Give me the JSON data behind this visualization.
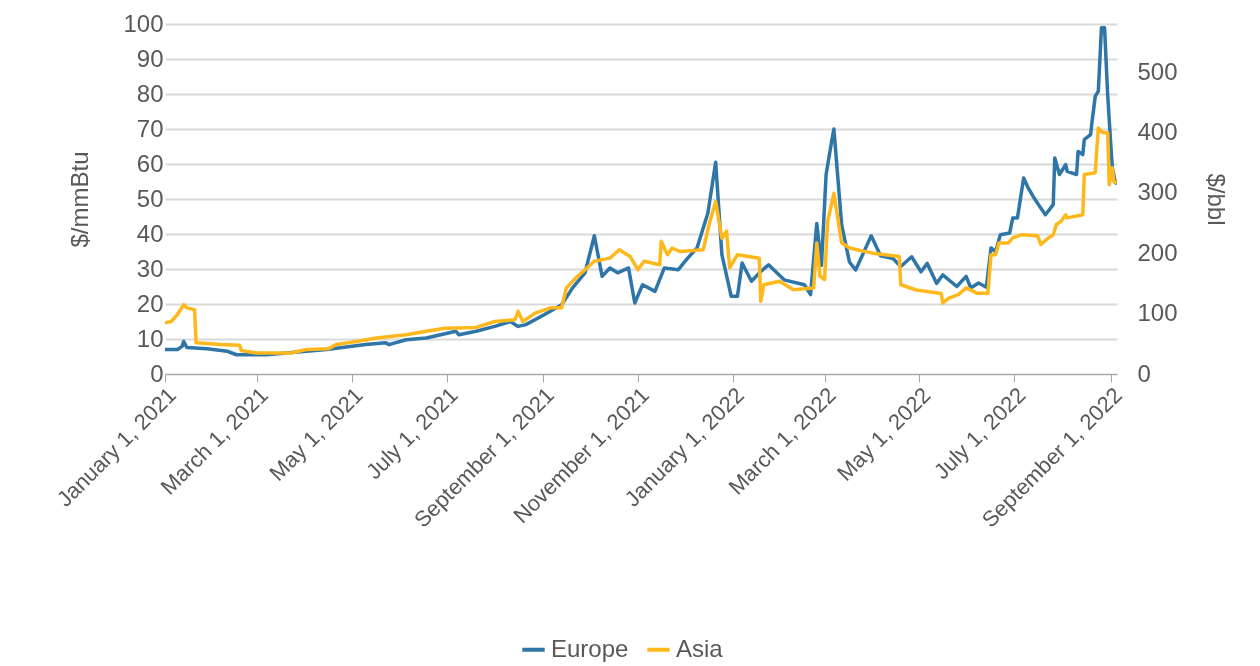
{
  "chart_data": {
    "type": "line",
    "ylabel": "$/mmBtu",
    "y2label": "$/bbl",
    "xlim": [
      "2021-01-01",
      "2022-09-05"
    ],
    "xticks": [
      {
        "value": "2021-01-01",
        "label": "January 1, 2021"
      },
      {
        "value": "2021-03-01",
        "label": "March 1, 2021"
      },
      {
        "value": "2021-05-01",
        "label": "May 1, 2021"
      },
      {
        "value": "2021-07-01",
        "label": "July 1, 2021"
      },
      {
        "value": "2021-09-01",
        "label": "September 1, 2021"
      },
      {
        "value": "2021-11-01",
        "label": "November 1, 2021"
      },
      {
        "value": "2022-01-01",
        "label": "January 1, 2022"
      },
      {
        "value": "2022-03-01",
        "label": "March 1, 2022"
      },
      {
        "value": "2022-05-01",
        "label": "May 1, 2022"
      },
      {
        "value": "2022-07-01",
        "label": "July 1, 2022"
      },
      {
        "value": "2022-09-01",
        "label": "September 1, 2022"
      }
    ],
    "ylim": [
      0,
      100
    ],
    "yticks": [
      0,
      10,
      20,
      30,
      40,
      50,
      60,
      70,
      80,
      90,
      100
    ],
    "y2lim": [
      0,
      580
    ],
    "y2ticks": [
      0,
      100,
      200,
      300,
      400,
      500
    ],
    "grid": "y",
    "legend": "bottom",
    "line_style": "solid",
    "marker": "none",
    "series": [
      {
        "name": "Europe",
        "color": "#2e75a8",
        "x": [
          "2021-01-01",
          "2021-01-09",
          "2021-01-12",
          "2021-01-13",
          "2021-01-15",
          "2021-01-28",
          "2021-02-10",
          "2021-02-16",
          "2021-03-07",
          "2021-03-20",
          "2021-04-15",
          "2021-05-10",
          "2021-05-23",
          "2021-05-25",
          "2021-06-05",
          "2021-06-18",
          "2021-07-07",
          "2021-07-09",
          "2021-07-20",
          "2021-08-01",
          "2021-08-11",
          "2021-08-16",
          "2021-08-21",
          "2021-09-02",
          "2021-09-13",
          "2021-09-20",
          "2021-09-28",
          "2021-10-04",
          "2021-10-09",
          "2021-10-14",
          "2021-10-19",
          "2021-10-26",
          "2021-10-30",
          "2021-11-04",
          "2021-11-12",
          "2021-11-18",
          "2021-11-27",
          "2021-12-03",
          "2021-12-09",
          "2021-12-16",
          "2021-12-21",
          "2021-12-25",
          "2021-12-31",
          "2022-01-04",
          "2022-01-07",
          "2022-01-13",
          "2022-01-19",
          "2022-01-24",
          "2022-02-03",
          "2022-02-16",
          "2022-02-20",
          "2022-02-24",
          "2022-02-27",
          "2022-03-02",
          "2022-03-05",
          "2022-03-07",
          "2022-03-12",
          "2022-03-17",
          "2022-03-21",
          "2022-03-31",
          "2022-04-06",
          "2022-04-14",
          "2022-04-19",
          "2022-04-26",
          "2022-05-02",
          "2022-05-06",
          "2022-05-12",
          "2022-05-16",
          "2022-05-25",
          "2022-05-31",
          "2022-06-03",
          "2022-06-08",
          "2022-06-13",
          "2022-06-16",
          "2022-06-19",
          "2022-06-22",
          "2022-06-28",
          "2022-06-30",
          "2022-07-03",
          "2022-07-05",
          "2022-07-07",
          "2022-07-10",
          "2022-07-13",
          "2022-07-18",
          "2022-07-21",
          "2022-07-26",
          "2022-07-27",
          "2022-07-30",
          "2022-08-03",
          "2022-08-04",
          "2022-08-10",
          "2022-08-11",
          "2022-08-14",
          "2022-08-15",
          "2022-08-19",
          "2022-08-20",
          "2022-08-22",
          "2022-08-24",
          "2022-08-26",
          "2022-08-28",
          "2022-08-30",
          "2022-09-01",
          "2022-09-02",
          "2022-09-04",
          "2022-09-05"
        ],
        "values": [
          7,
          7,
          7.9,
          9.3,
          7.6,
          7.2,
          6.5,
          5.5,
          5.5,
          6,
          7,
          8.4,
          8.9,
          8.4,
          9.8,
          10.3,
          12.2,
          11.2,
          12.2,
          13.6,
          15,
          13.6,
          14.1,
          17,
          19.8,
          24.6,
          28.9,
          39.5,
          27.9,
          30.3,
          28.9,
          30.3,
          20.3,
          25.5,
          23.6,
          30.3,
          29.8,
          33.1,
          36,
          46,
          60.5,
          34.1,
          22.2,
          22.2,
          31.7,
          26.5,
          29.3,
          31.2,
          26.9,
          25.5,
          22.7,
          43,
          31,
          57,
          65,
          70,
          42.6,
          32,
          29.7,
          39.5,
          33.8,
          33,
          30.7,
          33.5,
          29.2,
          31.6,
          25.9,
          28.3,
          25,
          27.9,
          24.6,
          26,
          24.8,
          36,
          35,
          39.8,
          40.3,
          44.6,
          44.6,
          50.3,
          56,
          53.1,
          50.8,
          47.4,
          45.5,
          48.4,
          61.7,
          57,
          59.8,
          57.9,
          57,
          63.6,
          62.7,
          67,
          68.4,
          72.2,
          79.3,
          80.8,
          98.9,
          98.9,
          79.8,
          65.5,
          58.9,
          54.6,
          54.6
        ]
      },
      {
        "name": "Asia",
        "color": "#ffb81c",
        "x": [
          "2021-01-01",
          "2021-01-05",
          "2021-01-09",
          "2021-01-13",
          "2021-01-15",
          "2021-01-20",
          "2021-01-21",
          "2021-02-06",
          "2021-02-18",
          "2021-02-19",
          "2021-03-01",
          "2021-03-23",
          "2021-04-02",
          "2021-04-16",
          "2021-04-21",
          "2021-05-04",
          "2021-05-17",
          "2021-06-05",
          "2021-06-18",
          "2021-06-30",
          "2021-07-20",
          "2021-08-01",
          "2021-08-14",
          "2021-08-16",
          "2021-08-19",
          "2021-08-27",
          "2021-09-06",
          "2021-09-13",
          "2021-09-16",
          "2021-09-22",
          "2021-09-28",
          "2021-10-04",
          "2021-10-14",
          "2021-10-20",
          "2021-10-27",
          "2021-11-01",
          "2021-11-05",
          "2021-11-15",
          "2021-11-16",
          "2021-11-20",
          "2021-11-23",
          "2021-11-28",
          "2021-12-13",
          "2021-12-17",
          "2021-12-21",
          "2021-12-25",
          "2021-12-28",
          "2021-12-30",
          "2022-01-04",
          "2022-01-18",
          "2022-01-19",
          "2022-01-21",
          "2022-01-31",
          "2022-02-09",
          "2022-02-22",
          "2022-02-24",
          "2022-02-26",
          "2022-03-01",
          "2022-03-03",
          "2022-03-07",
          "2022-03-12",
          "2022-03-17",
          "2022-03-31",
          "2022-04-18",
          "2022-04-19",
          "2022-04-29",
          "2022-05-15",
          "2022-05-16",
          "2022-05-20",
          "2022-05-26",
          "2022-05-31",
          "2022-06-07",
          "2022-06-14",
          "2022-06-16",
          "2022-06-19",
          "2022-06-21",
          "2022-06-27",
          "2022-06-30",
          "2022-07-06",
          "2022-07-16",
          "2022-07-18",
          "2022-07-23",
          "2022-07-26",
          "2022-07-28",
          "2022-07-31",
          "2022-08-03",
          "2022-08-04",
          "2022-08-14",
          "2022-08-15",
          "2022-08-22",
          "2022-08-24",
          "2022-08-27",
          "2022-08-30",
          "2022-08-31",
          "2022-09-02",
          "2022-09-03",
          "2022-09-05"
        ],
        "values": [
          14.6,
          15,
          17,
          19.8,
          18.9,
          18.4,
          8.9,
          8.4,
          8.2,
          6.7,
          6,
          6,
          7,
          7.2,
          8.4,
          9.3,
          10.3,
          11.2,
          12.2,
          13.1,
          13.3,
          15,
          15.5,
          17.9,
          15,
          17.4,
          18.9,
          18.9,
          24.6,
          27.4,
          29.8,
          32.2,
          33.1,
          35.5,
          33.6,
          29.8,
          32.2,
          31.2,
          37.9,
          34.1,
          36,
          35,
          35.5,
          43.1,
          49.3,
          38.8,
          40.8,
          30.3,
          34.1,
          33.1,
          20.8,
          25.5,
          26.5,
          24.1,
          24.6,
          37.4,
          28,
          27,
          43.6,
          51.6,
          37.5,
          36,
          34.6,
          33.6,
          25.5,
          24,
          23,
          20.3,
          21.7,
          22.7,
          24.6,
          23.1,
          23.1,
          34.1,
          34.1,
          37.4,
          37.4,
          38.9,
          39.8,
          39.5,
          37,
          38.9,
          39.8,
          42.7,
          43.6,
          45.5,
          44.6,
          45.5,
          57,
          57.5,
          70.3,
          68.9,
          68.9,
          54.1,
          58.9,
          55,
          54.6
        ]
      }
    ]
  }
}
